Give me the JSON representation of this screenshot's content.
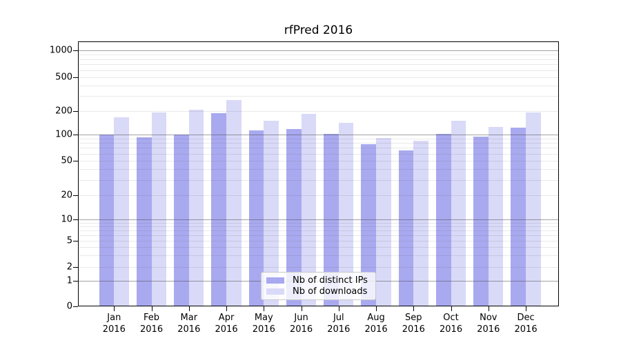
{
  "chart_data": {
    "type": "bar",
    "title": "rfPred 2016",
    "categories": [
      "Jan 2016",
      "Feb 2016",
      "Mar 2016",
      "Apr 2016",
      "May 2016",
      "Jun 2016",
      "Jul 2016",
      "Aug 2016",
      "Sep 2016",
      "Oct 2016",
      "Nov 2016",
      "Dec 2016"
    ],
    "series": [
      {
        "name": "Nb of distinct IPs",
        "color": "#a9a9f0",
        "values": [
          100,
          93,
          101,
          187,
          112,
          118,
          102,
          77,
          66,
          102,
          95,
          123
        ]
      },
      {
        "name": "Nb of downloads",
        "color": "#d9d9f8",
        "values": [
          165,
          193,
          206,
          270,
          149,
          184,
          141,
          91,
          85,
          150,
          126,
          191
        ]
      }
    ],
    "xlabel": "",
    "ylabel": "",
    "yscale": "symlog",
    "yticks": [
      0,
      1,
      2,
      5,
      10,
      20,
      50,
      100,
      200,
      500,
      1000
    ],
    "ylim": [
      0,
      1280
    ],
    "grid": "both",
    "legend_position": "lower center"
  },
  "colors": {
    "distinct_ips": "#a9a9f0",
    "downloads": "#d9d9f8",
    "grid_major": "#a0a0a0",
    "grid_minor": "#e4e4e4",
    "axis": "#000000"
  }
}
